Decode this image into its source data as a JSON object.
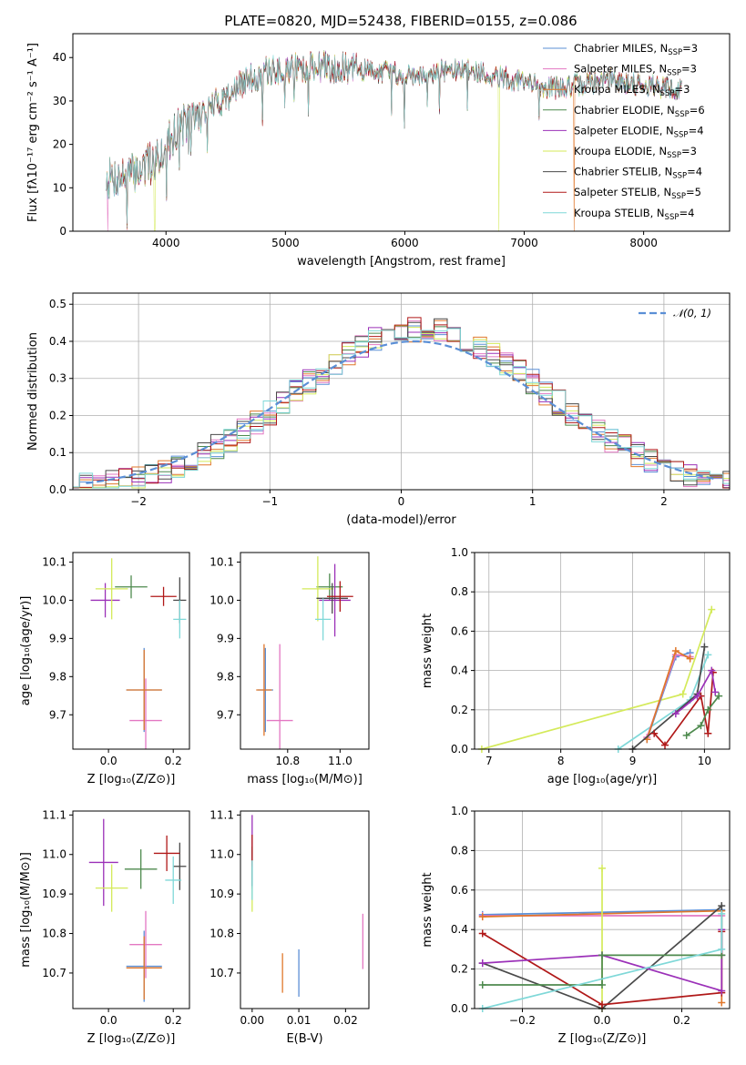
{
  "title": "PLATE=0820, MJD=52438, FIBERID=0155, z=0.086",
  "colors": {
    "Chabrier MILES": "#5b8fd6",
    "Salpeter MILES": "#e377c2",
    "Kroupa MILES": "#e0772a",
    "Chabrier ELODIE": "#4e8a4e",
    "Salpeter ELODIE": "#9b30b8",
    "Kroupa ELODIE": "#d4ea5a",
    "Chabrier STELIB": "#4a4a4a",
    "Salpeter STELIB": "#b01818",
    "Kroupa STELIB": "#7fd8d8",
    "gaussian": "#5b8fd6"
  },
  "chart_data": [
    {
      "id": "spectrum",
      "type": "line",
      "xlabel": "wavelength [Angstrom, rest frame]",
      "ylabel": "Flux [fλ10⁻¹⁷ erg cm⁻² s⁻¹ A⁻¹]",
      "xlim": [
        3220,
        8720
      ],
      "ylim": [
        0,
        45.5
      ],
      "xticks": [
        4000,
        5000,
        6000,
        7000,
        8000
      ],
      "yticks": [
        0,
        10,
        20,
        30,
        40
      ],
      "grid": false,
      "legend_position": "top-right",
      "continuum": [
        [
          3500,
          12
        ],
        [
          3700,
          13
        ],
        [
          3900,
          16
        ],
        [
          4000,
          20
        ],
        [
          4100,
          24
        ],
        [
          4300,
          27
        ],
        [
          4500,
          31
        ],
        [
          4700,
          35
        ],
        [
          4900,
          37
        ],
        [
          5100,
          37.5
        ],
        [
          5300,
          38
        ],
        [
          5500,
          37.5
        ],
        [
          5700,
          37
        ],
        [
          5900,
          36.5
        ],
        [
          6100,
          36
        ],
        [
          6300,
          37
        ],
        [
          6500,
          37
        ],
        [
          6700,
          36
        ],
        [
          6900,
          35
        ],
        [
          7100,
          33.5
        ],
        [
          7300,
          33
        ],
        [
          7500,
          34
        ],
        [
          7700,
          35
        ],
        [
          7900,
          34
        ],
        [
          8100,
          33.5
        ],
        [
          8300,
          32.5
        ]
      ],
      "dropouts": [
        [
          3510,
          "Salpeter MILES"
        ],
        [
          3905,
          "Kroupa ELODIE"
        ],
        [
          6790,
          "Kroupa ELODIE"
        ],
        [
          7420,
          "Kroupa MILES"
        ]
      ],
      "series": [
        {
          "name": "Chabrier MILES",
          "legend": "Chabrier MILES, N",
          "nssp": "=3"
        },
        {
          "name": "Salpeter MILES",
          "legend": "Salpeter MILES, N",
          "nssp": "=3"
        },
        {
          "name": "Kroupa MILES",
          "legend": "Kroupa MILES, N",
          "nssp": "=3"
        },
        {
          "name": "Chabrier ELODIE",
          "legend": "Chabrier ELODIE, N",
          "nssp": "=6"
        },
        {
          "name": "Salpeter ELODIE",
          "legend": "Salpeter ELODIE, N",
          "nssp": "=4"
        },
        {
          "name": "Kroupa ELODIE",
          "legend": "Kroupa ELODIE, N",
          "nssp": "=3"
        },
        {
          "name": "Chabrier STELIB",
          "legend": "Chabrier STELIB, N",
          "nssp": "=4"
        },
        {
          "name": "Salpeter STELIB",
          "legend": "Salpeter STELIB, N",
          "nssp": "=5"
        },
        {
          "name": "Kroupa STELIB",
          "legend": "Kroupa STELIB, N",
          "nssp": "=4"
        }
      ],
      "legend_subscript": "SSP"
    },
    {
      "id": "residuals",
      "type": "line",
      "xlabel": "(data-model)/error",
      "ylabel": "Normed distribution",
      "xlim": [
        -2.5,
        2.5
      ],
      "ylim": [
        0,
        0.53
      ],
      "xticks": [
        -2,
        -1,
        0,
        1,
        2
      ],
      "xticklabels": [
        "−2",
        "−1",
        "0",
        "1",
        "2"
      ],
      "yticks": [
        0,
        0.1,
        0.2,
        0.3,
        0.4,
        0.5
      ],
      "yticklabels": [
        "0.0",
        "0.1",
        "0.2",
        "0.3",
        "0.4",
        "0.5"
      ],
      "grid": true,
      "legend_position": "top-right",
      "legend": "𝒩(0, 1)",
      "gaussian": {
        "mean": 0.1,
        "sigma": 1.0,
        "amplitude": 0.4
      },
      "bin_width": 0.1
    },
    {
      "id": "age-Z",
      "type": "scatter",
      "xlabel": "Z [log₁₀(Z/Z⊙)]",
      "ylabel": "age  [log₁₀(age/yr)]",
      "xlim": [
        -0.11,
        0.25
      ],
      "ylim": [
        9.61,
        10.125
      ],
      "xticks": [
        0,
        0.2
      ],
      "xticklabels": [
        "0.0",
        "0.2"
      ],
      "yticks": [
        9.7,
        9.8,
        9.9,
        10.0,
        10.1
      ],
      "yticklabels": [
        "9.7",
        "9.8",
        "9.9",
        "10.0",
        "10.1"
      ],
      "grid": false,
      "points": [
        {
          "s": "Chabrier MILES",
          "x": 0.11,
          "xe": 0.055,
          "y": 9.765,
          "ye": 0.11
        },
        {
          "s": "Salpeter MILES",
          "x": 0.115,
          "xe": 0.05,
          "y": 9.685,
          "ye": 0.11
        },
        {
          "s": "Kroupa MILES",
          "x": 0.11,
          "xe": 0.055,
          "y": 9.765,
          "ye": 0.105
        },
        {
          "s": "Chabrier ELODIE",
          "x": 0.07,
          "xe": 0.05,
          "y": 10.035,
          "ye": 0.03
        },
        {
          "s": "Salpeter ELODIE",
          "x": -0.01,
          "xe": 0.045,
          "y": 10.0,
          "ye": 0.045
        },
        {
          "s": "Kroupa ELODIE",
          "x": 0.01,
          "xe": 0.05,
          "y": 10.03,
          "ye": 0.08
        },
        {
          "s": "Chabrier STELIB",
          "x": 0.22,
          "xe": 0.02,
          "y": 10.0,
          "ye": 0.06
        },
        {
          "s": "Salpeter STELIB",
          "x": 0.17,
          "xe": 0.04,
          "y": 10.01,
          "ye": 0.025
        },
        {
          "s": "Kroupa STELIB",
          "x": 0.22,
          "xe": 0.02,
          "y": 9.95,
          "ye": 0.05
        }
      ]
    },
    {
      "id": "age-mass",
      "type": "scatter",
      "xlabel": "mass [log₁₀(M/M⊙)]",
      "ylabel": "",
      "xlim": [
        10.62,
        11.11
      ],
      "ylim": [
        9.61,
        10.125
      ],
      "xticks": [
        10.8,
        11.0
      ],
      "xticklabels": [
        "10.8",
        "11.0"
      ],
      "yticks": [
        9.7,
        9.8,
        9.9,
        10.0,
        10.1
      ],
      "yticklabels": [
        "9.7",
        "9.8",
        "9.9",
        "10.0",
        "10.1"
      ],
      "grid": false,
      "points": [
        {
          "s": "Chabrier MILES",
          "x": 10.715,
          "xe": 0.03,
          "y": 9.765,
          "ye": 0.11
        },
        {
          "s": "Salpeter MILES",
          "x": 10.77,
          "xe": 0.05,
          "y": 9.685,
          "ye": 0.2
        },
        {
          "s": "Kroupa MILES",
          "x": 10.71,
          "xe": 0.03,
          "y": 9.765,
          "ye": 0.12
        },
        {
          "s": "Chabrier ELODIE",
          "x": 10.96,
          "xe": 0.05,
          "y": 10.035,
          "ye": 0.035
        },
        {
          "s": "Salpeter ELODIE",
          "x": 10.98,
          "xe": 0.06,
          "y": 10.0,
          "ye": 0.095
        },
        {
          "s": "Kroupa ELODIE",
          "x": 10.915,
          "xe": 0.06,
          "y": 10.03,
          "ye": 0.085
        },
        {
          "s": "Chabrier STELIB",
          "x": 10.97,
          "xe": 0.06,
          "y": 10.005,
          "ye": 0.04
        },
        {
          "s": "Salpeter STELIB",
          "x": 11.0,
          "xe": 0.05,
          "y": 10.01,
          "ye": 0.04
        },
        {
          "s": "Kroupa STELIB",
          "x": 10.935,
          "xe": 0.03,
          "y": 9.95,
          "ye": 0.055
        }
      ]
    },
    {
      "id": "weight-age",
      "type": "line",
      "xlabel": "age  [log₁₀(age/yr)]",
      "ylabel": "mass weight",
      "xlim": [
        6.8,
        10.35
      ],
      "ylim": [
        0,
        1.0
      ],
      "xticks": [
        7,
        8,
        9,
        10
      ],
      "xticklabels": [
        "7",
        "8",
        "9",
        "10"
      ],
      "yticks": [
        0,
        0.2,
        0.4,
        0.6,
        0.8,
        1.0
      ],
      "yticklabels": [
        "0.0",
        "0.2",
        "0.4",
        "0.6",
        "0.8",
        "1.0"
      ],
      "grid": true,
      "series": [
        {
          "s": "Kroupa ELODIE",
          "pts": [
            [
              6.9,
              0.0
            ],
            [
              9.7,
              0.28
            ],
            [
              10.1,
              0.71
            ]
          ]
        },
        {
          "s": "Kroupa STELIB",
          "pts": [
            [
              8.8,
              0.0
            ],
            [
              9.8,
              0.25
            ],
            [
              10.05,
              0.48
            ]
          ]
        },
        {
          "s": "Chabrier MILES",
          "pts": [
            [
              9.2,
              0.05
            ],
            [
              9.6,
              0.47
            ],
            [
              9.8,
              0.49
            ]
          ]
        },
        {
          "s": "Salpeter MILES",
          "pts": [
            [
              9.2,
              0.06
            ],
            [
              9.6,
              0.48
            ],
            [
              9.8,
              0.47
            ]
          ]
        },
        {
          "s": "Kroupa MILES",
          "pts": [
            [
              9.2,
              0.05
            ],
            [
              9.6,
              0.5
            ],
            [
              9.8,
              0.46
            ]
          ]
        },
        {
          "s": "Chabrier STELIB",
          "pts": [
            [
              9.0,
              0.0
            ],
            [
              9.9,
              0.28
            ],
            [
              10.0,
              0.52
            ]
          ]
        },
        {
          "s": "Salpeter STELIB",
          "pts": [
            [
              9.3,
              0.08
            ],
            [
              9.45,
              0.02
            ],
            [
              9.95,
              0.27
            ],
            [
              10.05,
              0.08
            ],
            [
              10.12,
              0.39
            ]
          ]
        },
        {
          "s": "Salpeter ELODIE",
          "pts": [
            [
              9.6,
              0.18
            ],
            [
              9.9,
              0.27
            ],
            [
              10.1,
              0.4
            ],
            [
              10.15,
              0.29
            ]
          ]
        },
        {
          "s": "Chabrier ELODIE",
          "pts": [
            [
              9.75,
              0.07
            ],
            [
              9.95,
              0.12
            ],
            [
              10.05,
              0.2
            ],
            [
              10.2,
              0.27
            ]
          ]
        }
      ]
    },
    {
      "id": "mass-Z",
      "type": "scatter",
      "xlabel": "Z [log₁₀(Z/Z⊙)]",
      "ylabel": "mass [log₁₀(M/M⊙)]",
      "xlim": [
        -0.11,
        0.25
      ],
      "ylim": [
        10.61,
        11.11
      ],
      "xticks": [
        0,
        0.2
      ],
      "xticklabels": [
        "0.0",
        "0.2"
      ],
      "yticks": [
        10.7,
        10.8,
        10.9,
        11.0,
        11.1
      ],
      "yticklabels": [
        "10.7",
        "10.8",
        "10.9",
        "11.0",
        "11.1"
      ],
      "grid": false,
      "points": [
        {
          "s": "Chabrier MILES",
          "x": 0.11,
          "xe": 0.055,
          "y": 10.717,
          "ye": 0.09
        },
        {
          "s": "Salpeter MILES",
          "x": 0.115,
          "xe": 0.05,
          "y": 10.772,
          "ye": 0.085
        },
        {
          "s": "Kroupa MILES",
          "x": 0.11,
          "xe": 0.055,
          "y": 10.713,
          "ye": 0.08
        },
        {
          "s": "Chabrier ELODIE",
          "x": 0.1,
          "xe": 0.05,
          "y": 10.963,
          "ye": 0.05
        },
        {
          "s": "Salpeter ELODIE",
          "x": -0.015,
          "xe": 0.045,
          "y": 10.98,
          "ye": 0.11
        },
        {
          "s": "Kroupa ELODIE",
          "x": 0.01,
          "xe": 0.05,
          "y": 10.915,
          "ye": 0.06
        },
        {
          "s": "Chabrier STELIB",
          "x": 0.22,
          "xe": 0.02,
          "y": 10.97,
          "ye": 0.06
        },
        {
          "s": "Salpeter STELIB",
          "x": 0.18,
          "xe": 0.04,
          "y": 11.003,
          "ye": 0.045
        },
        {
          "s": "Kroupa STELIB",
          "x": 0.2,
          "xe": 0.025,
          "y": 10.935,
          "ye": 0.06
        }
      ]
    },
    {
      "id": "mass-ebv",
      "type": "scatter",
      "xlabel": "E(B-V)",
      "ylabel": "",
      "xlim": [
        -0.0025,
        0.025
      ],
      "ylim": [
        10.61,
        11.11
      ],
      "xticks": [
        0,
        0.01,
        0.02
      ],
      "xticklabels": [
        "0.00",
        "0.01",
        "0.02"
      ],
      "yticks": [
        10.7,
        10.8,
        10.9,
        11.0,
        11.1
      ],
      "yticklabels": [
        "10.7",
        "10.8",
        "10.9",
        "11.0",
        "11.1"
      ],
      "grid": false,
      "points": [
        {
          "s": "Chabrier MILES",
          "x": 0.01,
          "xe": 0.0,
          "y": 10.7,
          "ye": 0.06
        },
        {
          "s": "Salpeter MILES",
          "x": 0.0237,
          "xe": 0.0,
          "y": 10.78,
          "ye": 0.07
        },
        {
          "s": "Kroupa MILES",
          "x": 0.0065,
          "xe": 0.0,
          "y": 10.7,
          "ye": 0.05
        },
        {
          "s": "Chabrier ELODIE",
          "x": 0.0,
          "xe": 0.0,
          "y": 10.963,
          "ye": 0.05
        },
        {
          "s": "Salpeter ELODIE",
          "x": 0.0,
          "xe": 0.0,
          "y": 11.02,
          "ye": 0.08
        },
        {
          "s": "Kroupa ELODIE",
          "x": 0.0,
          "xe": 0.0,
          "y": 10.915,
          "ye": 0.06
        },
        {
          "s": "Chabrier STELIB",
          "x": 0.0,
          "xe": 0.0,
          "y": 10.97,
          "ye": 0.05
        },
        {
          "s": "Salpeter STELIB",
          "x": 0.0,
          "xe": 0.0,
          "y": 11.01,
          "ye": 0.04
        },
        {
          "s": "Kroupa STELIB",
          "x": 0.0,
          "xe": 0.0,
          "y": 10.935,
          "ye": 0.05
        }
      ]
    },
    {
      "id": "weight-Z",
      "type": "line",
      "xlabel": "Z [log₁₀(Z/Z⊙)]",
      "ylabel": "mass weight",
      "xlim": [
        -0.32,
        0.32
      ],
      "ylim": [
        0,
        1.0
      ],
      "xticks": [
        -0.2,
        0,
        0.2
      ],
      "xticklabels": [
        "−0.2",
        "0.0",
        "0.2"
      ],
      "yticks": [
        0,
        0.2,
        0.4,
        0.6,
        0.8,
        1.0
      ],
      "yticklabels": [
        "0.0",
        "0.2",
        "0.4",
        "0.6",
        "0.8",
        "1.0"
      ],
      "grid": true,
      "series": [
        {
          "s": "Chabrier MILES",
          "pts": [
            [
              -0.3,
              0.475
            ],
            [
              0.3,
              0.5
            ]
          ]
        },
        {
          "s": "Salpeter MILES",
          "pts": [
            [
              -0.3,
              0.47
            ],
            [
              0.3,
              0.47
            ]
          ]
        },
        {
          "s": "Kroupa MILES",
          "pts": [
            [
              -0.3,
              0.465
            ],
            [
              0.3,
              0.495
            ],
            [
              0.3,
              0.03
            ]
          ]
        },
        {
          "s": "Kroupa ELODIE",
          "pts": [
            [
              0.0,
              0.0
            ],
            [
              0.0,
              0.71
            ]
          ]
        },
        {
          "s": "Chabrier STELIB",
          "pts": [
            [
              -0.3,
              0.23
            ],
            [
              0.0,
              0.0
            ],
            [
              0.3,
              0.52
            ],
            [
              0.3,
              0.27
            ]
          ]
        },
        {
          "s": "Salpeter STELIB",
          "pts": [
            [
              -0.3,
              0.38
            ],
            [
              0.0,
              0.02
            ],
            [
              0.3,
              0.08
            ],
            [
              0.3,
              0.39
            ]
          ]
        },
        {
          "s": "Salpeter ELODIE",
          "pts": [
            [
              -0.3,
              0.23
            ],
            [
              0.0,
              0.27
            ],
            [
              0.3,
              0.09
            ],
            [
              0.3,
              0.4
            ]
          ]
        },
        {
          "s": "Chabrier ELODIE",
          "pts": [
            [
              -0.3,
              0.12
            ],
            [
              0.0,
              0.12
            ],
            [
              0.0,
              0.27
            ],
            [
              0.3,
              0.27
            ]
          ]
        },
        {
          "s": "Kroupa STELIB",
          "pts": [
            [
              -0.3,
              0.0
            ],
            [
              0.3,
              0.3
            ],
            [
              0.3,
              0.48
            ]
          ]
        }
      ]
    }
  ]
}
